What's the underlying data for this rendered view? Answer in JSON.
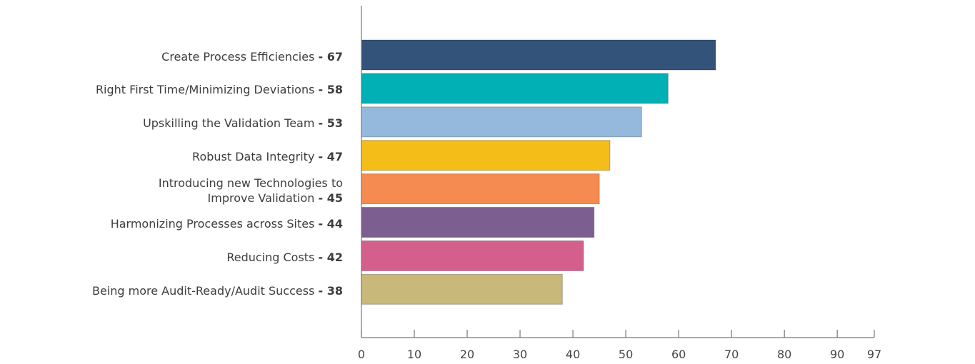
{
  "chart_data": {
    "type": "bar",
    "orientation": "horizontal",
    "categories": [
      "Create Process Efficiencies",
      "Right First Time/Minimizing Deviations",
      "Upskilling the Validation Team",
      "Robust Data Integrity",
      "Introducing new Technologies to Improve Validation",
      "Harmonizing Processes across Sites",
      "Reducing Costs",
      "Being more Audit-Ready/Audit Success"
    ],
    "label_lines": [
      [
        "Create Process Efficiencies"
      ],
      [
        "Right First Time/Minimizing Deviations"
      ],
      [
        "Upskilling the Validation Team"
      ],
      [
        "Robust Data Integrity"
      ],
      [
        "Introducing new Technologies to",
        "Improve Validation"
      ],
      [
        "Harmonizing Processes across Sites"
      ],
      [
        "Reducing Costs"
      ],
      [
        "Being more Audit-Ready/Audit Success"
      ]
    ],
    "value_labels": [
      "- 67",
      "- 58",
      "- 53",
      "- 47",
      "- 45",
      "- 44",
      "- 42",
      "- 38"
    ],
    "values": [
      67,
      58,
      53,
      47,
      45,
      44,
      42,
      38
    ],
    "colors": [
      "#34537a",
      "#00b0b4",
      "#95b8dd",
      "#f5bd18",
      "#f58b50",
      "#7d5e91",
      "#d45f8d",
      "#c8b87a"
    ],
    "xlim": [
      0,
      97
    ],
    "xticks": [
      0,
      10,
      20,
      30,
      40,
      50,
      60,
      70,
      80,
      90,
      97
    ],
    "xtick_labels": [
      "0",
      "10",
      "20",
      "30",
      "40",
      "50",
      "60",
      "70",
      "80",
      "90",
      "97"
    ],
    "title": "",
    "xlabel": "",
    "ylabel": "",
    "grid": false,
    "legend": "none"
  }
}
